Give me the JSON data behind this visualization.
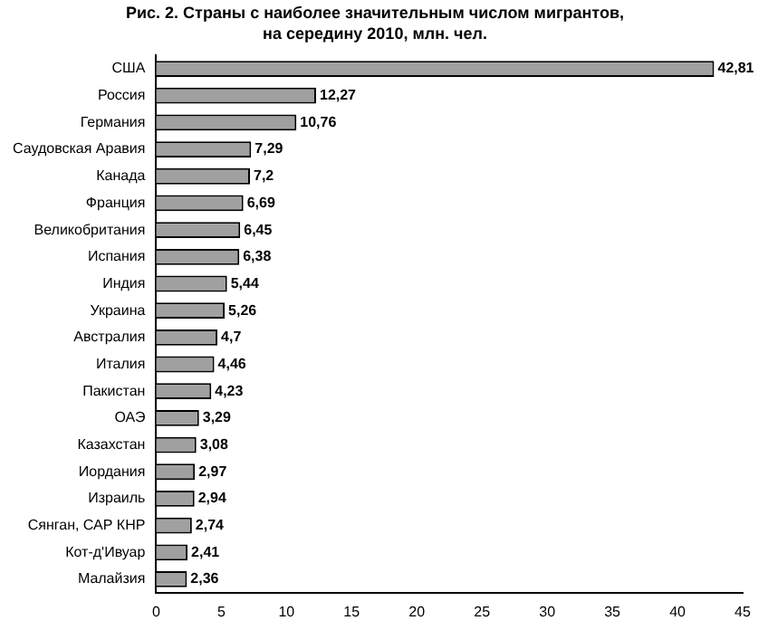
{
  "chart_data": {
    "type": "bar",
    "orientation": "horizontal",
    "title": "Рис. 2. Страны с наиболее значительным числом мигрантов,",
    "subtitle": "на середину 2010, млн. чел.",
    "categories": [
      "США",
      "Россия",
      "Германия",
      "Саудовская Аравия",
      "Канада",
      "Франция",
      "Великобритания",
      "Испания",
      "Индия",
      "Украина",
      "Австралия",
      "Италия",
      "Пакистан",
      "ОАЭ",
      "Казахстан",
      "Иордания",
      "Израиль",
      "Сянган, САР КНР",
      "Кот-д'Ивуар",
      "Малайзия"
    ],
    "values": [
      42.81,
      12.27,
      10.76,
      7.29,
      7.2,
      6.69,
      6.45,
      6.38,
      5.44,
      5.26,
      4.7,
      4.46,
      4.23,
      3.29,
      3.08,
      2.97,
      2.94,
      2.74,
      2.41,
      2.36
    ],
    "value_labels": [
      "42,81",
      "12,27",
      "10,76",
      "7,29",
      "7,2",
      "6,69",
      "6,45",
      "6,38",
      "5,44",
      "5,26",
      "4,7",
      "4,46",
      "4,23",
      "3,29",
      "3,08",
      "2,97",
      "2,94",
      "2,74",
      "2,41",
      "2,36"
    ],
    "color": "#a0a0a0",
    "xlim": [
      0,
      45
    ],
    "xticks": [
      0,
      5,
      10,
      15,
      20,
      25,
      30,
      35,
      40,
      45
    ],
    "grid": false,
    "legend": false
  }
}
